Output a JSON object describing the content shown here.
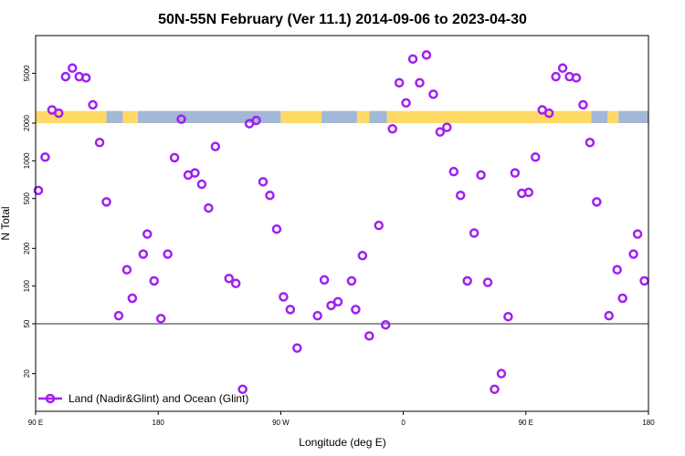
{
  "chart_data": {
    "type": "scatter",
    "title": "50N-55N February (Ver 11.1)   2014-09-06 to 2023-04-30",
    "xlabel": "Longitude (deg E)",
    "ylabel": "N Total",
    "x_axis": {
      "range_deg_from_90E": [
        0,
        360
      ],
      "ticks": [
        {
          "pos": 0,
          "label": "90 E"
        },
        {
          "pos": 90,
          "label": "180"
        },
        {
          "pos": 180,
          "label": "90 W"
        },
        {
          "pos": 270,
          "label": "0"
        },
        {
          "pos": 360,
          "label": "90 E"
        },
        {
          "pos": 450,
          "label": "180"
        }
      ],
      "view_range": [
        0,
        450
      ]
    },
    "y_axis": {
      "scale": "log",
      "range": [
        10,
        10000
      ],
      "ticks": [
        20,
        50,
        100,
        200,
        500,
        1000,
        2000,
        5000
      ]
    },
    "reference_line": 50,
    "land_ocean_band": {
      "y_range": [
        2000,
        2500
      ],
      "land_color": "#FFD966",
      "ocean_color": "#A3B7D6",
      "segments": [
        {
          "from": 0,
          "to": 52,
          "type": "land"
        },
        {
          "from": 52,
          "to": 64,
          "type": "ocean"
        },
        {
          "from": 64,
          "to": 75,
          "type": "land"
        },
        {
          "from": 75,
          "to": 180,
          "type": "ocean"
        },
        {
          "from": 180,
          "to": 210,
          "type": "land"
        },
        {
          "from": 210,
          "to": 236,
          "type": "ocean"
        },
        {
          "from": 236,
          "to": 245,
          "type": "land"
        },
        {
          "from": 245,
          "to": 258,
          "type": "ocean"
        },
        {
          "from": 258,
          "to": 408,
          "type": "land"
        },
        {
          "from": 408,
          "to": 420,
          "type": "ocean"
        },
        {
          "from": 420,
          "to": 428,
          "type": "land"
        },
        {
          "from": 428,
          "to": 450,
          "type": "ocean"
        }
      ]
    },
    "series": [
      {
        "name": "Land (Nadir&Glint) and Ocean (Glint)",
        "color": "#A020F0",
        "points": [
          [
            2,
            580
          ],
          [
            7,
            1070
          ],
          [
            12,
            2550
          ],
          [
            17,
            2400
          ],
          [
            22,
            4700
          ],
          [
            27,
            5500
          ],
          [
            32,
            4700
          ],
          [
            37,
            4600
          ],
          [
            42,
            2800
          ],
          [
            47,
            1400
          ],
          [
            52,
            470
          ],
          [
            61,
            58
          ],
          [
            67,
            135
          ],
          [
            71,
            80
          ],
          [
            79,
            180
          ],
          [
            82,
            260
          ],
          [
            87,
            110
          ],
          [
            92,
            55
          ],
          [
            97,
            180
          ],
          [
            102,
            1060
          ],
          [
            107,
            2150
          ],
          [
            112,
            770
          ],
          [
            117,
            800
          ],
          [
            122,
            650
          ],
          [
            127,
            420
          ],
          [
            132,
            1300
          ],
          [
            142,
            115
          ],
          [
            147,
            105
          ],
          [
            152,
            15
          ],
          [
            157,
            1980
          ],
          [
            162,
            2100
          ],
          [
            167,
            680
          ],
          [
            172,
            530
          ],
          [
            177,
            285
          ],
          [
            182,
            82
          ],
          [
            187,
            65
          ],
          [
            192,
            32
          ],
          [
            207,
            58
          ],
          [
            212,
            112
          ],
          [
            217,
            70
          ],
          [
            222,
            75
          ],
          [
            232,
            110
          ],
          [
            235,
            65
          ],
          [
            240,
            175
          ],
          [
            245,
            40
          ],
          [
            252,
            305
          ],
          [
            257,
            49
          ],
          [
            262,
            1800
          ],
          [
            267,
            4200
          ],
          [
            272,
            2900
          ],
          [
            277,
            6500
          ],
          [
            282,
            4200
          ],
          [
            287,
            7000
          ],
          [
            292,
            3400
          ],
          [
            297,
            1700
          ],
          [
            302,
            1850
          ],
          [
            307,
            820
          ],
          [
            312,
            530
          ],
          [
            317,
            110
          ],
          [
            322,
            265
          ],
          [
            327,
            770
          ],
          [
            332,
            107
          ],
          [
            337,
            15
          ],
          [
            342,
            20
          ],
          [
            347,
            57
          ],
          [
            352,
            800
          ],
          [
            357,
            550
          ],
          [
            362,
            560
          ],
          [
            367,
            1070
          ],
          [
            372,
            2550
          ],
          [
            377,
            2400
          ],
          [
            382,
            4700
          ],
          [
            387,
            5500
          ],
          [
            392,
            4700
          ],
          [
            397,
            4600
          ],
          [
            402,
            2800
          ],
          [
            407,
            1400
          ],
          [
            412,
            470
          ],
          [
            421,
            58
          ],
          [
            427,
            135
          ],
          [
            431,
            80
          ],
          [
            439,
            180
          ],
          [
            442,
            260
          ],
          [
            447,
            110
          ]
        ]
      }
    ],
    "legend": {
      "entries": [
        "Land (Nadir&Glint) and Ocean (Glint)"
      ],
      "placement": "bottom-left"
    }
  }
}
